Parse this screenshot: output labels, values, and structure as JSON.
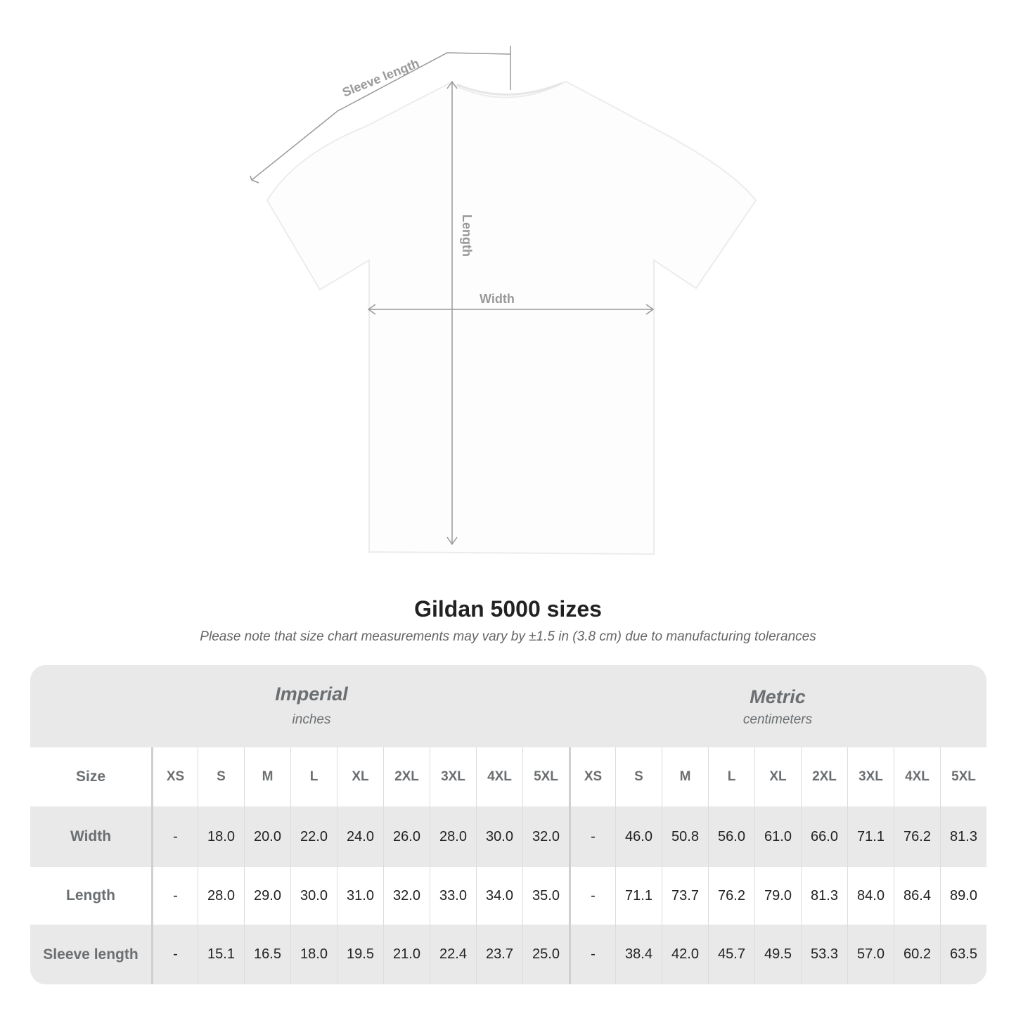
{
  "diagram": {
    "labels": {
      "sleeve": "Sleeve length",
      "length": "Length",
      "width": "Width"
    }
  },
  "title": "Gildan 5000 sizes",
  "note": "Please note that size chart measurements may vary by ±1.5 in (3.8 cm) due to manufacturing tolerances",
  "table": {
    "imperial": {
      "title": "Imperial",
      "unit": "inches"
    },
    "metric": {
      "title": "Metric",
      "unit": "centimeters"
    },
    "size_label": "Size",
    "sizes": [
      "XS",
      "S",
      "M",
      "L",
      "XL",
      "2XL",
      "3XL",
      "4XL",
      "5XL"
    ],
    "rows": [
      {
        "label": "Width",
        "imperial": [
          "-",
          "18.0",
          "20.0",
          "22.0",
          "24.0",
          "26.0",
          "28.0",
          "30.0",
          "32.0"
        ],
        "metric": [
          "-",
          "46.0",
          "50.8",
          "56.0",
          "61.0",
          "66.0",
          "71.1",
          "76.2",
          "81.3"
        ]
      },
      {
        "label": "Length",
        "imperial": [
          "-",
          "28.0",
          "29.0",
          "30.0",
          "31.0",
          "32.0",
          "33.0",
          "34.0",
          "35.0"
        ],
        "metric": [
          "-",
          "71.1",
          "73.7",
          "76.2",
          "79.0",
          "81.3",
          "84.0",
          "86.4",
          "89.0"
        ]
      },
      {
        "label": "Sleeve length",
        "imperial": [
          "-",
          "15.1",
          "16.5",
          "18.0",
          "19.5",
          "21.0",
          "22.4",
          "23.7",
          "25.0"
        ],
        "metric": [
          "-",
          "38.4",
          "42.0",
          "45.7",
          "49.5",
          "53.3",
          "57.0",
          "60.2",
          "63.5"
        ]
      }
    ]
  },
  "colors": {
    "header_text": "#6b6f72",
    "band": "#e9e9e9",
    "arrow": "#999999"
  }
}
